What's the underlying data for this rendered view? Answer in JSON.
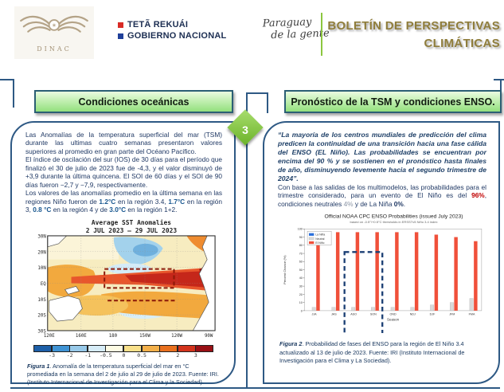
{
  "header": {
    "dinac_label": "DINAC",
    "gov_line1": "TETÃ REKUÁI",
    "gov_line2": "GOBIERNO NACIONAL",
    "gov_red": "#d92b26",
    "gov_blue": "#20409a",
    "script_line1": "Paraguay",
    "script_line2": "de la gente",
    "title_line1": "BOLETÍN DE PERSPECTIVAS",
    "title_line2": "CLIMÁTICAS",
    "title_color": "#8f7d3b",
    "accent_green": "#8cc63f"
  },
  "step_badge": "3",
  "left_panel": {
    "header": "Condiciones oceánicas",
    "paragraph1": "Las Anomalías de la temperatura superficial del mar (TSM) durante las ultimas cuatro semanas presentaron valores superiores al promedio en gran parte del Océano Pacifico.",
    "paragraph2": "El índice de oscilación del sur (IOS) de 30 días para el período que finalizó el 30 de julio de 2023 fue de -4,3, y el valor disminuyó de +3,9 durante la última quincena. El SOI de 60 días y el SOI de 90 días fueron −2,7 y −7,9, respectivamente.",
    "p3_a": "Los valores de las anomalías promedio en la última semana en las regiones Niño fueron de ",
    "p3_v1": "1.2°C",
    "p3_b": " en la región 3.4, ",
    "p3_v2": "1.7°C",
    "p3_c": " en la región 3, ",
    "p3_v3": "0.8 °C",
    "p3_d": " en la región 4 y de ",
    "p3_v4": "3.0°C",
    "p3_e": " en la región 1+2.",
    "caption_bold": "Figura 1",
    "caption_rest": ". Anomalía de la temperatura superficial del mar en °C promediada en la semana del 2 de julio al 29 de julio de 2023. Fuente: IRI. (Instituto Internacional de Investigación para el Clima y la Sociedad)."
  },
  "right_panel": {
    "header": "Pronóstico de la TSM y condiciones ENSO.",
    "quote": "“La mayoría de los centros mundiales de predicción del clima predicen la continuidad de una transición hacia una fase cálida del ENSO (EL Niño). Las probabilidades se encuentran por encima del 90 % y se sostienen en el pronóstico hasta finales de año, disminuyendo levemente hacia el segundo trimestre de 2024”.",
    "p2_a": "Con base a las salidas de los multimodelos, las probabilidades para el trimestre considerado, para un evento de El Niño es del ",
    "p2_v1": "96%",
    "p2_b": ", condiciones neutrales ",
    "p2_v2": "4%",
    "p2_c": " y de La Niña ",
    "p2_v3": "0%",
    "p2_d": ".",
    "caption_bold": "Figura 2",
    "caption_rest": ". Probabilidad de fases del ENSO para la región de El Niño 3.4 actualizado al 13 de julio de 2023. Fuente: IRI (Instituto Internacional de Investigación para el Clima y La Sociedad)."
  },
  "chart_data": [
    {
      "type": "heatmap",
      "title": "Average SST Anomalies",
      "subtitle": "2 JUL 2023 – 29 JUL 2023",
      "y_ticks": [
        "30N",
        "20N",
        "10N",
        "EQ",
        "10S",
        "20S",
        "30S"
      ],
      "x_ticks": [
        "120E",
        "160E",
        "180",
        "150W",
        "120W",
        "90W"
      ],
      "colorbar_values": [
        -3,
        -2,
        -1,
        -0.5,
        0,
        0.5,
        1,
        2,
        3
      ],
      "colorbar_colors": [
        "#1d5fa8",
        "#3f93d4",
        "#97c9e9",
        "#d6ecf7",
        "#fdfbe3",
        "#f8e08a",
        "#f3b04a",
        "#e9701e",
        "#d3331c",
        "#991015"
      ],
      "description": "Pacific SST anomaly map showing warm (El Niño) anomalies of 1–3 °C along the equator, strongest near the South American coast; cool patch in the north-central Pacific."
    },
    {
      "type": "bar",
      "title": "Official NOAA CPC ENSO Probabilities (issued July 2023)",
      "subtitle": "based on -0.5°/+0.5°C thresholds in ERSSTv5 Niño 3.4 index",
      "categories": [
        "JJA",
        "JAS",
        "ASO",
        "SON",
        "OND",
        "NDJ",
        "DJF",
        "JFM",
        "FMA"
      ],
      "series": [
        {
          "name": "La Niña",
          "color": "#2a6fdb",
          "values": [
            0,
            0,
            0,
            0,
            0,
            0,
            0,
            0,
            0
          ]
        },
        {
          "name": "Neutral",
          "color": "#d9d9d9",
          "values": [
            4,
            4,
            4,
            4,
            4,
            4,
            7,
            10,
            15
          ]
        },
        {
          "name": "El Niño",
          "color": "#f0503a",
          "values": [
            81,
            96,
            96,
            96,
            96,
            96,
            93,
            90,
            85
          ]
        }
      ],
      "xlabel": "Season",
      "ylabel": "Percent Chance (%)",
      "ylim": [
        0,
        100
      ],
      "legend_position": "upper-left",
      "highlight_box_categories": [
        "ASO",
        "SON"
      ],
      "highlight_box_color": "#1b3f74"
    }
  ]
}
